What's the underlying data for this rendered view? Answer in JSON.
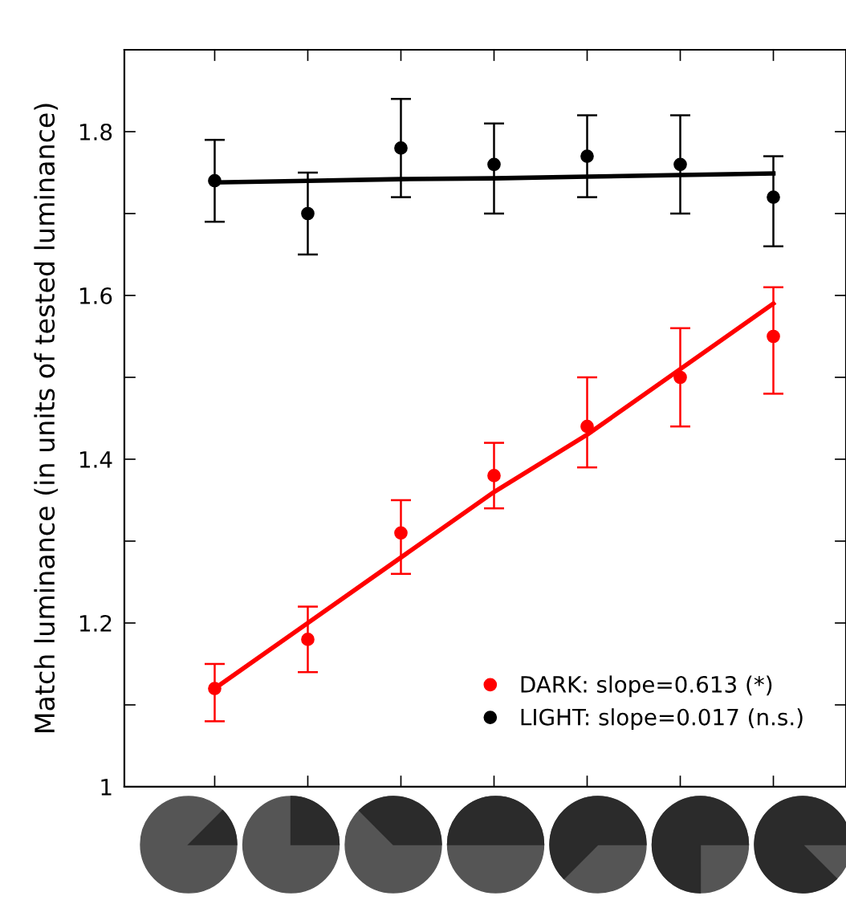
{
  "chart_data": {
    "type": "scatter",
    "ylabel": "Match luminance (in units of tested luminance)",
    "categories": [
      null,
      null,
      null,
      null,
      null,
      null,
      null
    ],
    "ylim": [
      1,
      1.9
    ],
    "yticks": [
      1,
      {
        "value": 1.1,
        "label": null
      },
      1.2,
      {
        "value": 1.3,
        "label": null
      },
      1.4,
      {
        "value": 1.5,
        "label": null
      },
      1.6,
      {
        "value": 1.7,
        "label": null
      },
      1.8
    ],
    "grid": false,
    "legend": "bottom right",
    "series": [
      {
        "name": "DARK: slope=0.613 (*)",
        "color": "#ff0000",
        "marker": "circle",
        "values": [
          1.12,
          1.18,
          1.31,
          1.38,
          1.44,
          1.5,
          1.55
        ],
        "errors": [
          [
            1.08,
            1.15
          ],
          [
            1.14,
            1.22
          ],
          [
            1.26,
            1.35
          ],
          [
            1.34,
            1.42
          ],
          [
            1.39,
            1.5
          ],
          [
            1.44,
            1.56
          ],
          [
            1.48,
            1.61
          ]
        ]
      },
      {
        "name": "LIGHT: slope=0.017 (n.s.)",
        "color": "#000000",
        "marker": "circle",
        "values": [
          1.74,
          1.7,
          1.78,
          1.76,
          1.77,
          1.76,
          1.72
        ],
        "errors": [
          [
            1.69,
            1.79
          ],
          [
            1.65,
            1.75
          ],
          [
            1.72,
            1.84
          ],
          [
            1.7,
            1.81
          ],
          [
            1.72,
            1.82
          ],
          [
            1.7,
            1.82
          ],
          [
            1.66,
            1.77
          ]
        ]
      },
      {
        "type": "line",
        "color": "#ff0000",
        "marker": "none",
        "values": [
          1.12,
          1.2,
          1.28,
          1.36,
          1.43,
          1.51,
          1.59
        ]
      },
      {
        "type": "line",
        "color": "#000000",
        "marker": "none",
        "values": [
          1.738,
          1.74,
          1.742,
          1.743,
          1.745,
          1.747,
          1.749
        ]
      }
    ]
  }
}
